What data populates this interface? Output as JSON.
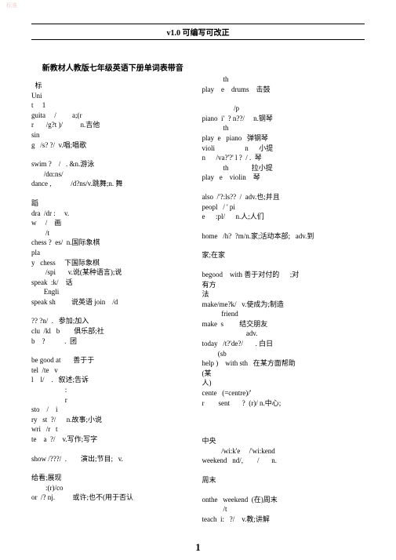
{
  "watermark": "标准",
  "header": "v1.0    可编写可改正",
  "title": "新教材人教版七年级英语下册单词表带音",
  "left": [
    "  标",
    "Uni",
    "t     1",
    "guita     /         a;(r",
    "r       /g?t )/          n.吉他",
    "sin",
    "g   /s? ?/  v.唱;唱歌",
    "",
    "swim ?    /   . &n.游泳",
    "       /dɑ:ns/",
    "dance ,           /d?ns/v.跳舞;n. 舞",
    "",
    "蹈",
    "dra  /dr :     v.",
    "w     /    画",
    "        /t",
    "chess ?  es/  n.国际象棋",
    "pla",
    "y   chess     下国际象棋",
    "        /spi       v.说(某种语言);说",
    "speak  :k/    话",
    "       Engli",
    "speak sh         说英语 join    /d",
    "",
    "?? ?n/  .   参加;加入",
    "clu  /kl   b        俱乐部;社",
    "b    ?           .  团",
    "",
    "be good at       善于于",
    "tel  /te   v",
    "l    l/    .   叙述;告诉",
    "                   :",
    "                   r",
    "sto    /    i",
    "ry   st  ?/      n.故事;小说",
    "wri   /r   t",
    "te    a  ?/    v.写作;写字",
    "",
    "show /???/  .        演出;节目;   v.",
    "",
    "给看;展现",
    "        :(r)/co",
    "or  /? nj.          或许;也不(用于否认"
  ],
  "right": [
    "            th",
    "play    e    drums    击鼓",
    "",
    "                  /p",
    "piano  i'  ? n??/     n.钢琴",
    "            th",
    "play  e   piano   弹钢琴",
    "violi                 n      小提",
    "n      /va?'?' l ?  / .  琴",
    "            th             拉小提",
    "play   e    violin    琴",
    "",
    "also  /'?:ls??  /  adv.也;并且",
    "peopl   / ' pi",
    "e      :pl/      n.人;人们",
    "",
    "home   /h?  ?m/n.家;活动本部;   adv.到",
    "",
    "家;在家",
    "",
    "begood    with 善于对付的      ;对",
    "有方",
    "法",
    "make/me?k/   v.使成为;制造",
    "           friend",
    "make  s         结交朋友",
    "                         adv.",
    "today   /t?'de?/       . 白日",
    "         (sb",
    "help )    with sth   在某方面帮助",
    "(某",
    "人)",
    "cente   (=centre)/'",
    "r        sent       ?  (r)/ n.中心;",
    "",
    "",
    "",
    "中央",
    "           /wi:k'e     /'wi:kend",
    "weekend   nd/,        /       n.",
    "",
    "周末",
    "",
    "onthe   weekend  (在)周末",
    "            /t",
    "teach  i:   ?/    v.教;讲解"
  ],
  "page_number": "1"
}
